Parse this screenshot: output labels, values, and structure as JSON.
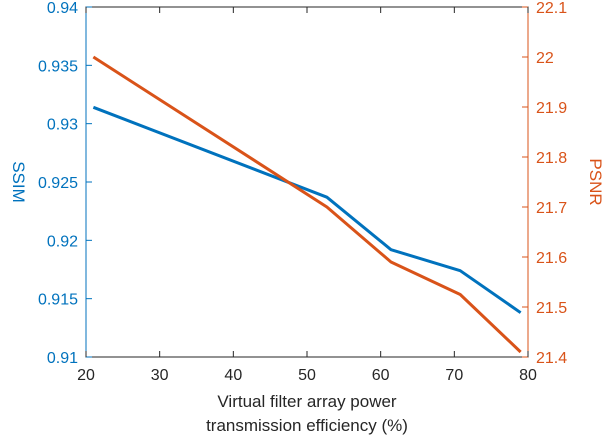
{
  "chart_data": {
    "type": "line",
    "xlabel": [
      "Virtual filter array power",
      "transmission efficiency (%)"
    ],
    "xlim": [
      20,
      80
    ],
    "xticks": [
      20,
      30,
      40,
      50,
      60,
      70,
      80
    ],
    "left_axis": {
      "label": "SSIM",
      "ylim": [
        0.91,
        0.94
      ],
      "ticks": [
        0.91,
        0.915,
        0.92,
        0.925,
        0.93,
        0.935,
        0.94
      ],
      "tick_labels": [
        "0.91",
        "0.915",
        "0.92",
        "0.925",
        "0.93",
        "0.935",
        "0.94"
      ],
      "color": "#0072bd"
    },
    "right_axis": {
      "label": "PSNR",
      "ylim": [
        21.4,
        22.1
      ],
      "ticks": [
        21.4,
        21.5,
        21.6,
        21.7,
        21.8,
        21.9,
        22.0,
        22.1
      ],
      "tick_labels": [
        "21.4",
        "21.5",
        "21.6",
        "21.7",
        "21.8",
        "21.9",
        "22",
        "22.1"
      ],
      "color": "#d95319"
    },
    "series": [
      {
        "name": "SSIM",
        "axis": "left",
        "color": "#0072bd",
        "x": [
          21,
          52.7,
          61.4,
          70.8,
          79
        ],
        "y": [
          0.9314,
          0.9237,
          0.9192,
          0.9174,
          0.9138
        ]
      },
      {
        "name": "PSNR",
        "axis": "right",
        "color": "#d95319",
        "x": [
          21,
          52.7,
          61.4,
          70.8,
          79
        ],
        "y": [
          22.0,
          21.7,
          21.59,
          21.525,
          21.41
        ]
      }
    ]
  }
}
